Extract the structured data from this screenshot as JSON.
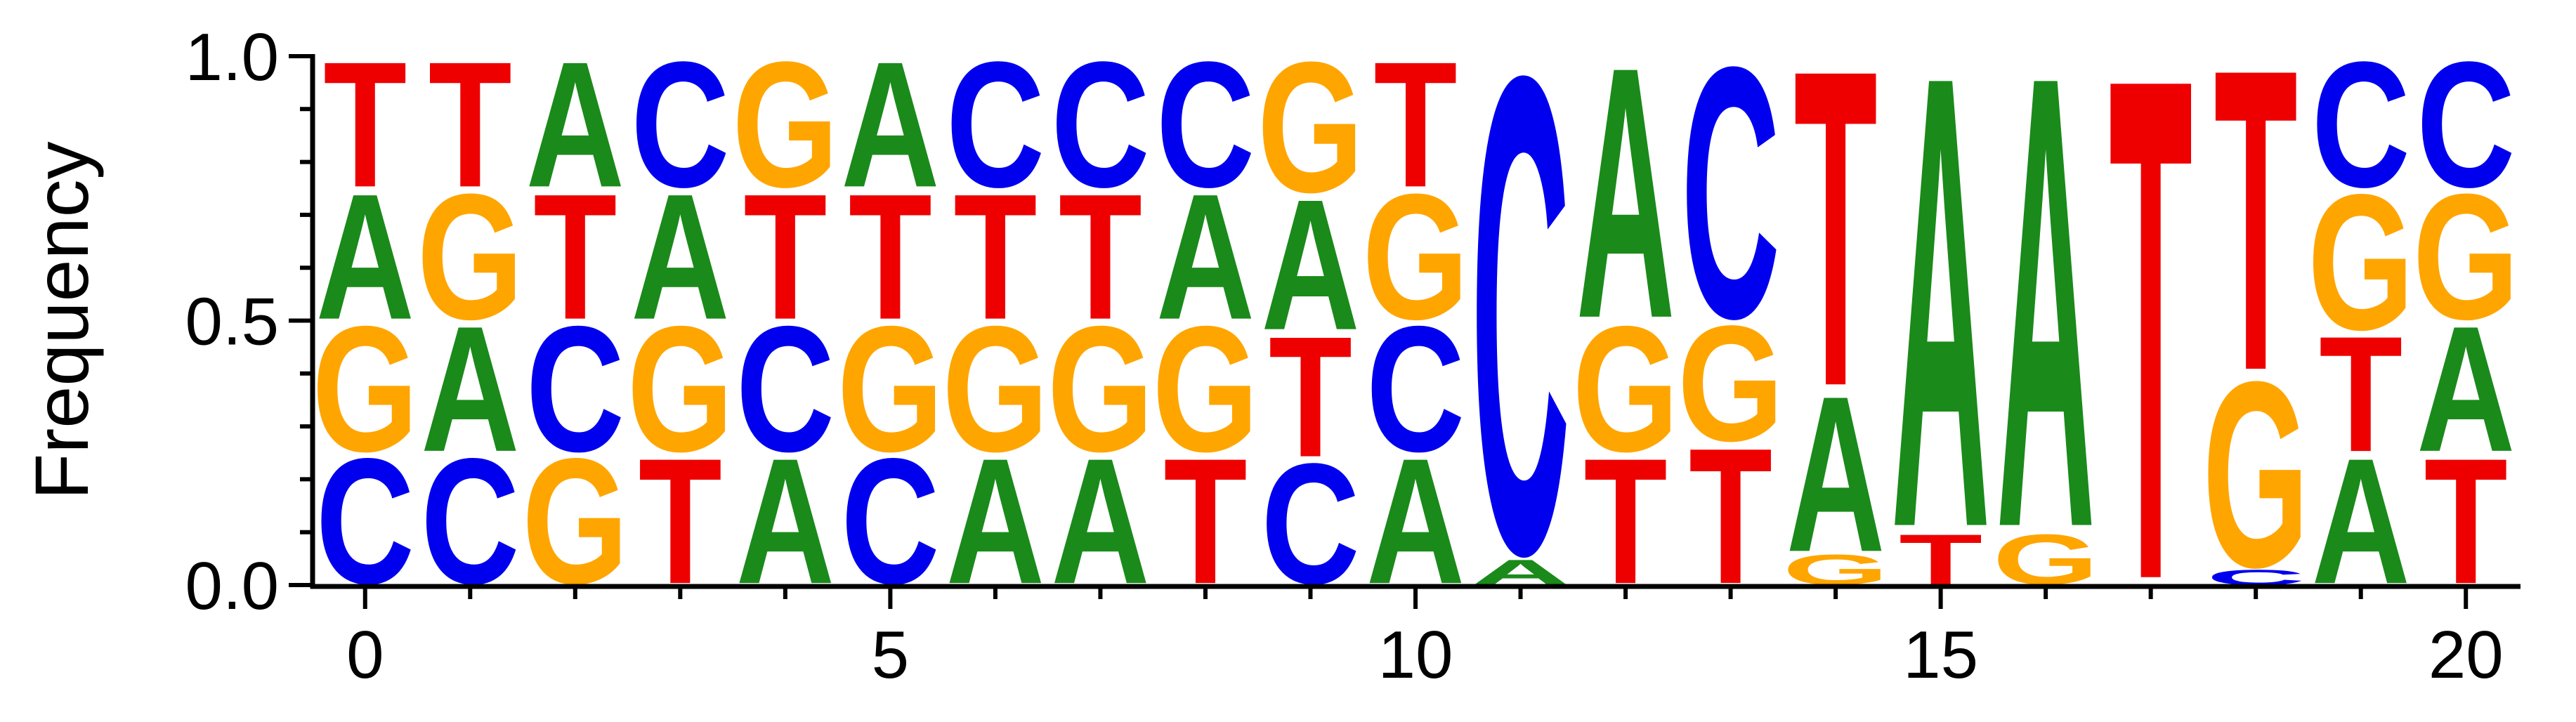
{
  "chart_data": {
    "type": "sequence_logo",
    "ylabel": "Frequency",
    "xlabel": "",
    "ylim": [
      0,
      1
    ],
    "xlim": [
      -0.5,
      20.5
    ],
    "yticks": [
      "0.0",
      "0.5",
      "1.0"
    ],
    "ytick_values": [
      0,
      0.5,
      1
    ],
    "xticks": [
      "0",
      "5",
      "10",
      "15",
      "20"
    ],
    "xtick_values": [
      0,
      5,
      10,
      15,
      20
    ],
    "colors": {
      "A": "#1a8a1a",
      "C": "#0000ee",
      "G": "#ffa500",
      "T": "#ee0000"
    },
    "positions": [
      {
        "x": 0,
        "stack": [
          {
            "letter": "C",
            "value": 0.25
          },
          {
            "letter": "G",
            "value": 0.25
          },
          {
            "letter": "A",
            "value": 0.25
          },
          {
            "letter": "T",
            "value": 0.25
          }
        ]
      },
      {
        "x": 1,
        "stack": [
          {
            "letter": "C",
            "value": 0.25
          },
          {
            "letter": "A",
            "value": 0.25
          },
          {
            "letter": "G",
            "value": 0.25
          },
          {
            "letter": "T",
            "value": 0.25
          }
        ]
      },
      {
        "x": 2,
        "stack": [
          {
            "letter": "G",
            "value": 0.25
          },
          {
            "letter": "C",
            "value": 0.25
          },
          {
            "letter": "T",
            "value": 0.25
          },
          {
            "letter": "A",
            "value": 0.25
          }
        ]
      },
      {
        "x": 3,
        "stack": [
          {
            "letter": "T",
            "value": 0.25
          },
          {
            "letter": "G",
            "value": 0.25
          },
          {
            "letter": "A",
            "value": 0.25
          },
          {
            "letter": "C",
            "value": 0.25
          }
        ]
      },
      {
        "x": 4,
        "stack": [
          {
            "letter": "A",
            "value": 0.25
          },
          {
            "letter": "C",
            "value": 0.25
          },
          {
            "letter": "T",
            "value": 0.25
          },
          {
            "letter": "G",
            "value": 0.25
          }
        ]
      },
      {
        "x": 5,
        "stack": [
          {
            "letter": "C",
            "value": 0.25
          },
          {
            "letter": "G",
            "value": 0.25
          },
          {
            "letter": "T",
            "value": 0.25
          },
          {
            "letter": "A",
            "value": 0.25
          }
        ]
      },
      {
        "x": 6,
        "stack": [
          {
            "letter": "A",
            "value": 0.25
          },
          {
            "letter": "G",
            "value": 0.25
          },
          {
            "letter": "T",
            "value": 0.25
          },
          {
            "letter": "C",
            "value": 0.25
          }
        ]
      },
      {
        "x": 7,
        "stack": [
          {
            "letter": "A",
            "value": 0.25
          },
          {
            "letter": "G",
            "value": 0.25
          },
          {
            "letter": "T",
            "value": 0.25
          },
          {
            "letter": "C",
            "value": 0.25
          }
        ]
      },
      {
        "x": 8,
        "stack": [
          {
            "letter": "T",
            "value": 0.25
          },
          {
            "letter": "G",
            "value": 0.25
          },
          {
            "letter": "A",
            "value": 0.25
          },
          {
            "letter": "C",
            "value": 0.25
          }
        ]
      },
      {
        "x": 9,
        "stack": [
          {
            "letter": "C",
            "value": 0.24
          },
          {
            "letter": "T",
            "value": 0.24
          },
          {
            "letter": "A",
            "value": 0.26
          },
          {
            "letter": "G",
            "value": 0.26
          }
        ]
      },
      {
        "x": 10,
        "stack": [
          {
            "letter": "A",
            "value": 0.25
          },
          {
            "letter": "C",
            "value": 0.25
          },
          {
            "letter": "G",
            "value": 0.25
          },
          {
            "letter": "T",
            "value": 0.25
          }
        ]
      },
      {
        "x": 11,
        "stack": [
          {
            "letter": "A",
            "value": 0.05
          },
          {
            "letter": "C",
            "value": 0.95
          }
        ]
      },
      {
        "x": 12,
        "stack": [
          {
            "letter": "T",
            "value": 0.25
          },
          {
            "letter": "G",
            "value": 0.25
          },
          {
            "letter": "A",
            "value": 0.5
          }
        ]
      },
      {
        "x": 13,
        "stack": [
          {
            "letter": "T",
            "value": 0.27
          },
          {
            "letter": "G",
            "value": 0.23
          },
          {
            "letter": "C",
            "value": 0.5
          }
        ]
      },
      {
        "x": 14,
        "stack": [
          {
            "letter": "G",
            "value": 0.06
          },
          {
            "letter": "A",
            "value": 0.31
          },
          {
            "letter": "T",
            "value": 0.63
          }
        ]
      },
      {
        "x": 15,
        "stack": [
          {
            "letter": "T",
            "value": 0.1
          },
          {
            "letter": "A",
            "value": 0.9
          }
        ]
      },
      {
        "x": 16,
        "stack": [
          {
            "letter": "G",
            "value": 0.1
          },
          {
            "letter": "A",
            "value": 0.9
          }
        ]
      },
      {
        "x": 17,
        "stack": [
          {
            "letter": "T",
            "value": 1.0
          }
        ]
      },
      {
        "x": 18,
        "stack": [
          {
            "letter": "C",
            "value": 0.03
          },
          {
            "letter": "G",
            "value": 0.37
          },
          {
            "letter": "T",
            "value": 0.6
          }
        ]
      },
      {
        "x": 19,
        "stack": [
          {
            "letter": "A",
            "value": 0.25
          },
          {
            "letter": "T",
            "value": 0.23
          },
          {
            "letter": "G",
            "value": 0.27
          },
          {
            "letter": "C",
            "value": 0.25
          }
        ]
      },
      {
        "x": 20,
        "stack": [
          {
            "letter": "T",
            "value": 0.25
          },
          {
            "letter": "A",
            "value": 0.25
          },
          {
            "letter": "G",
            "value": 0.25
          },
          {
            "letter": "C",
            "value": 0.25
          }
        ]
      }
    ]
  }
}
